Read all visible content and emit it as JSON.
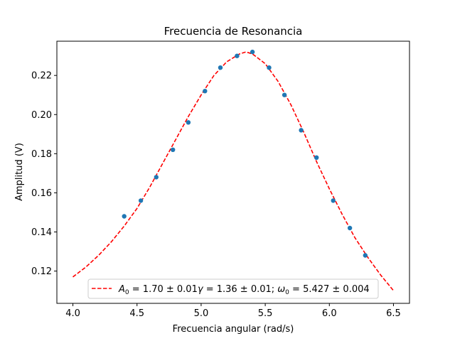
{
  "chart_data": {
    "type": "scatter",
    "title": "Frecuencia de Resonancia",
    "xlabel": "Frecuencia angular (rad/s)",
    "ylabel": "Amplitud (V)",
    "xlim": [
      3.875,
      6.625
    ],
    "ylim": [
      0.1035,
      0.2375
    ],
    "xticks": [
      4.0,
      4.5,
      5.0,
      5.5,
      6.0,
      6.5
    ],
    "xtick_labels": [
      "4.0",
      "4.5",
      "5.0",
      "5.5",
      "6.0",
      "6.5"
    ],
    "yticks": [
      0.12,
      0.14,
      0.16,
      0.18,
      0.2,
      0.22
    ],
    "ytick_labels": [
      "0.12",
      "0.14",
      "0.16",
      "0.18",
      "0.20",
      "0.22"
    ],
    "grid": false,
    "legend_position": "lower-center",
    "series": [
      {
        "kind": "scatter",
        "color": "#1f77b4",
        "x": [
          4.4,
          4.53,
          4.65,
          4.78,
          4.9,
          5.03,
          5.15,
          5.28,
          5.4,
          5.53,
          5.65,
          5.78,
          5.9,
          6.03,
          6.16,
          6.28
        ],
        "y": [
          0.148,
          0.156,
          0.168,
          0.182,
          0.196,
          0.212,
          0.224,
          0.23,
          0.232,
          0.224,
          0.21,
          0.192,
          0.178,
          0.156,
          0.142,
          0.128
        ]
      },
      {
        "kind": "line",
        "style": "dashed",
        "color": "#ff0000",
        "name": "A_0 = 1.70 ± 0.01γ = 1.36 ± 0.01; ω_0 = 5.427 ± 0.004",
        "x": [
          4.0,
          4.1,
          4.2,
          4.3,
          4.4,
          4.5,
          4.6,
          4.7,
          4.8,
          4.9,
          5.0,
          5.1,
          5.2,
          5.3,
          5.35,
          5.4,
          5.5,
          5.6,
          5.7,
          5.8,
          5.9,
          6.0,
          6.1,
          6.2,
          6.3,
          6.4,
          6.5
        ],
        "y": [
          0.117,
          0.122,
          0.128,
          0.135,
          0.143,
          0.152,
          0.163,
          0.175,
          0.187,
          0.199,
          0.21,
          0.22,
          0.227,
          0.231,
          0.232,
          0.231,
          0.226,
          0.217,
          0.205,
          0.191,
          0.176,
          0.162,
          0.149,
          0.137,
          0.127,
          0.118,
          0.11
        ]
      }
    ],
    "legend": {
      "entries": [
        {
          "label": "A₀ = 1.70 ± 0.01γ = 1.36 ± 0.01; ω₀ = 5.427 ± 0.004",
          "color": "#ff0000",
          "style": "dashed"
        }
      ]
    }
  }
}
